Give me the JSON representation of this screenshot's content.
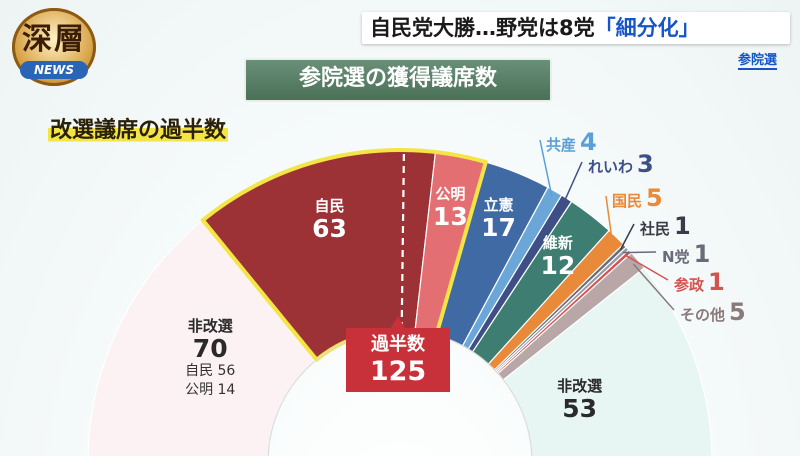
{
  "logo": {
    "kanji": "深層",
    "news": "NEWS"
  },
  "headline": {
    "main": "自民党大勝…野党は8党",
    "keyword": "「細分化」",
    "sub": "参院選"
  },
  "chart_data": {
    "type": "pie",
    "shape": "semicircle",
    "title": "参院選の獲得議席数",
    "annotation": "改選議席の過半数",
    "majority": {
      "label": "過半数",
      "value": 125
    },
    "outer_ring": [
      {
        "name": "非改選",
        "value": 70,
        "breakdown": [
          {
            "name": "自民",
            "value": 56
          },
          {
            "name": "公明",
            "value": 14
          }
        ],
        "color": "#fdf2f3"
      },
      {
        "name": "自民",
        "value": 63,
        "color": "#9c3235"
      },
      {
        "name": "公明",
        "value": 13,
        "color": "#e36f73"
      },
      {
        "name": "立憲",
        "value": 17,
        "color": "#3f6aa4"
      },
      {
        "name": "共産",
        "value": 4,
        "color": "#6aa6d8"
      },
      {
        "name": "れいわ",
        "value": 3,
        "color": "#3e4f86"
      },
      {
        "name": "維新",
        "value": 12,
        "color": "#3e7e72"
      },
      {
        "name": "国民",
        "value": 5,
        "color": "#e9893a"
      },
      {
        "name": "社民",
        "value": 1,
        "color": "#6a6a78"
      },
      {
        "name": "N党",
        "value": 1,
        "color": "#9a9aa8"
      },
      {
        "name": "参政",
        "value": 1,
        "color": "#d4524f"
      },
      {
        "name": "その他",
        "value": 5,
        "color": "#b9a6a6"
      },
      {
        "name": "非改選",
        "value": 53,
        "color": "#e7f5f3"
      }
    ]
  }
}
